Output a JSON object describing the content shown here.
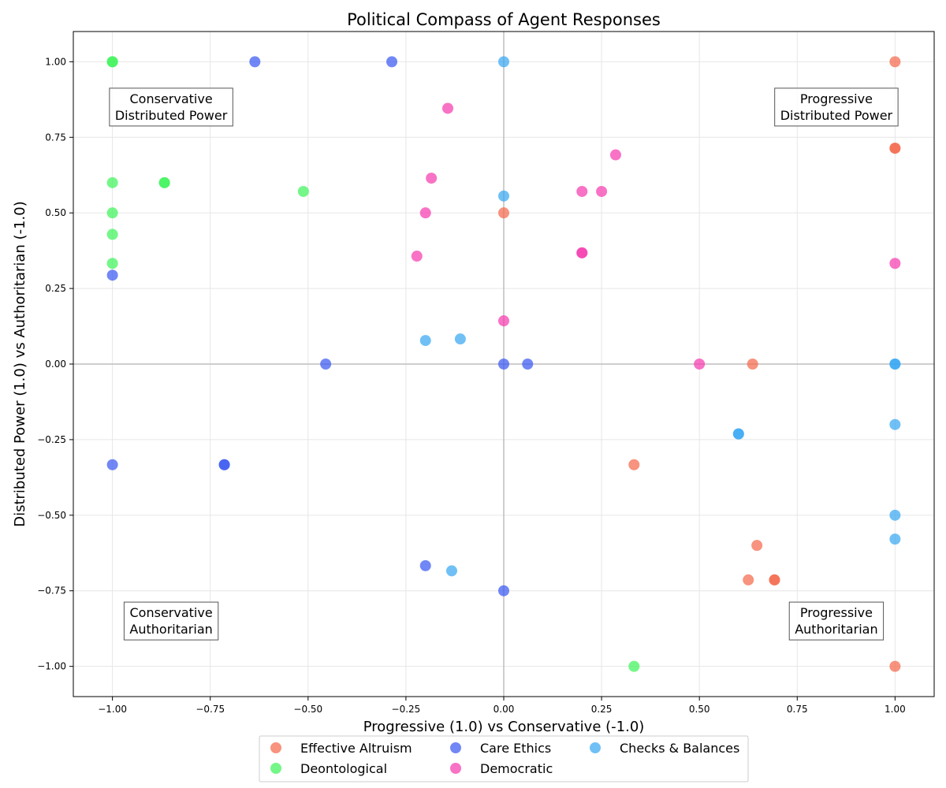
{
  "chart_data": {
    "type": "scatter",
    "title": "Political Compass of Agent Responses",
    "xlabel": "Progressive (1.0) vs Conservative (-1.0)",
    "ylabel": "Distributed Power (1.0) vs Authoritarian (-1.0)",
    "xlim": [
      -1.1,
      1.1
    ],
    "ylim": [
      -1.1,
      1.1
    ],
    "xticks": [
      -1.0,
      -0.75,
      -0.5,
      -0.25,
      0.0,
      0.25,
      0.5,
      0.75,
      1.0
    ],
    "yticks": [
      -1.0,
      -0.75,
      -0.5,
      -0.25,
      0.0,
      0.25,
      0.5,
      0.75,
      1.0
    ],
    "xtick_labels": [
      "−1.00",
      "−0.75",
      "−0.50",
      "−0.25",
      "0.00",
      "0.25",
      "0.50",
      "0.75",
      "1.00"
    ],
    "ytick_labels": [
      "−1.00",
      "−0.75",
      "−0.50",
      "−0.25",
      "0.00",
      "0.25",
      "0.50",
      "0.75",
      "1.00"
    ],
    "grid": true,
    "legend_position": "bottom-center",
    "quadrant_labels": [
      {
        "text": [
          "Conservative",
          "Distributed Power"
        ],
        "x": -0.85,
        "y": 0.85
      },
      {
        "text": [
          "Progressive",
          "Distributed Power"
        ],
        "x": 0.85,
        "y": 0.85
      },
      {
        "text": [
          "Conservative",
          "Authoritarian"
        ],
        "x": -0.85,
        "y": -0.85
      },
      {
        "text": [
          "Progressive",
          "Authoritarian"
        ],
        "x": 0.85,
        "y": -0.85
      }
    ],
    "series": [
      {
        "name": "Effective Altruism",
        "color": "#f4694c",
        "points": [
          [
            1.0,
            1.0
          ],
          [
            1.0,
            0.714
          ],
          [
            1.0,
            0.714
          ],
          [
            0.0,
            0.5
          ],
          [
            0.636,
            0.0
          ],
          [
            0.333,
            -0.333
          ],
          [
            0.647,
            -0.6
          ],
          [
            0.625,
            -0.714
          ],
          [
            0.692,
            -0.714
          ],
          [
            0.692,
            -0.714
          ],
          [
            1.0,
            -1.0
          ]
        ]
      },
      {
        "name": "Deontological",
        "color": "#3ff45a",
        "points": [
          [
            -1.0,
            1.0
          ],
          [
            -1.0,
            1.0
          ],
          [
            -1.0,
            0.6
          ],
          [
            -0.867,
            0.6
          ],
          [
            -0.867,
            0.6
          ],
          [
            -0.512,
            0.571
          ],
          [
            -1.0,
            0.5
          ],
          [
            -1.0,
            0.429
          ],
          [
            -1.0,
            0.333
          ],
          [
            0.333,
            -1.0
          ]
        ]
      },
      {
        "name": "Care Ethics",
        "color": "#3a59f1",
        "points": [
          [
            -0.636,
            1.0
          ],
          [
            -0.286,
            1.0
          ],
          [
            -1.0,
            0.294
          ],
          [
            -0.455,
            0.0
          ],
          [
            0.0,
            0.0
          ],
          [
            0.061,
            0.0
          ],
          [
            -1.0,
            -0.333
          ],
          [
            -0.714,
            -0.333
          ],
          [
            -0.714,
            -0.333
          ],
          [
            -0.2,
            -0.667
          ],
          [
            0.0,
            -0.75
          ]
        ]
      },
      {
        "name": "Democratic",
        "color": "#f53cae",
        "points": [
          [
            -0.143,
            0.846
          ],
          [
            0.286,
            0.692
          ],
          [
            -0.185,
            0.615
          ],
          [
            0.2,
            0.571
          ],
          [
            0.25,
            0.571
          ],
          [
            -0.2,
            0.5
          ],
          [
            -0.222,
            0.357
          ],
          [
            0.2,
            0.368
          ],
          [
            0.2,
            0.368
          ],
          [
            1.0,
            0.333
          ],
          [
            0.0,
            0.143
          ],
          [
            0.5,
            0.0
          ]
        ]
      },
      {
        "name": "Checks & Balances",
        "color": "#39a8f3",
        "points": [
          [
            0.0,
            1.0
          ],
          [
            0.0,
            0.556
          ],
          [
            -0.2,
            0.078
          ],
          [
            -0.111,
            0.083
          ],
          [
            1.0,
            0.0
          ],
          [
            1.0,
            0.0
          ],
          [
            0.6,
            -0.231
          ],
          [
            0.6,
            -0.231
          ],
          [
            1.0,
            -0.2
          ],
          [
            1.0,
            -0.5
          ],
          [
            1.0,
            -0.579
          ],
          [
            -0.133,
            -0.684
          ]
        ]
      }
    ]
  }
}
